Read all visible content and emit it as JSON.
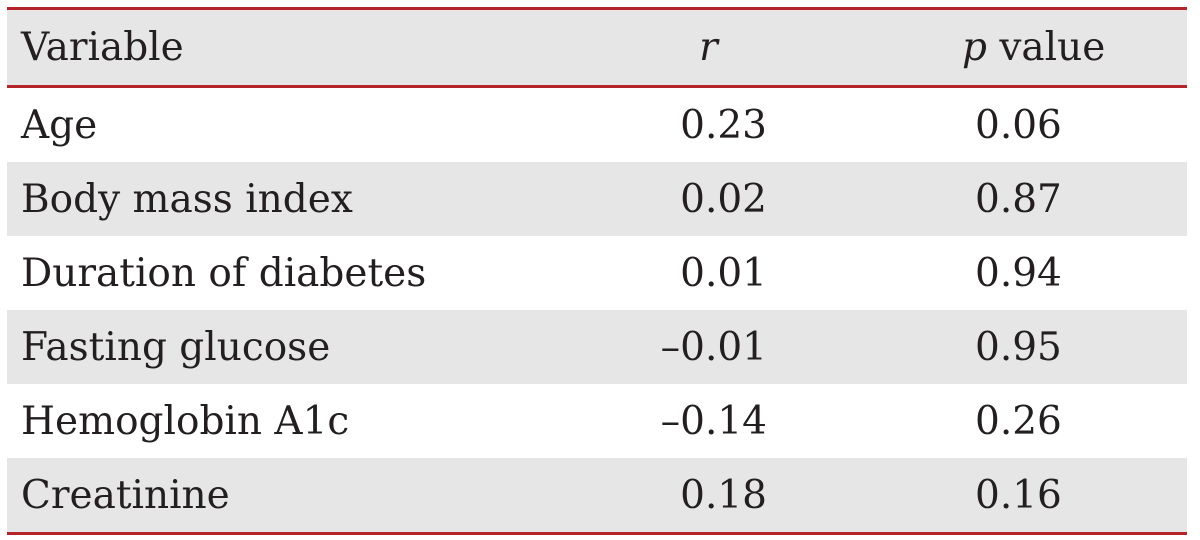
{
  "table": {
    "headers": {
      "variable": "Variable",
      "r": "r",
      "p_italic": "p",
      "p_rest": " value"
    },
    "rows": [
      {
        "variable": "Age",
        "r": "0.23",
        "p": "0.06"
      },
      {
        "variable": "Body mass index",
        "r": "0.02",
        "p": "0.87"
      },
      {
        "variable": "Duration of diabetes",
        "r": "0.01",
        "p": "0.94"
      },
      {
        "variable": "Fasting glucose",
        "r": "–0.01",
        "p": "0.95"
      },
      {
        "variable": "Hemoglobin A1c",
        "r": "–0.14",
        "p": "0.26"
      },
      {
        "variable": "Creatinine",
        "r": "0.18",
        "p": "0.16"
      }
    ]
  },
  "colors": {
    "rule": "#b5242b",
    "shade": "#e6e6e6",
    "text": "#231f20"
  }
}
